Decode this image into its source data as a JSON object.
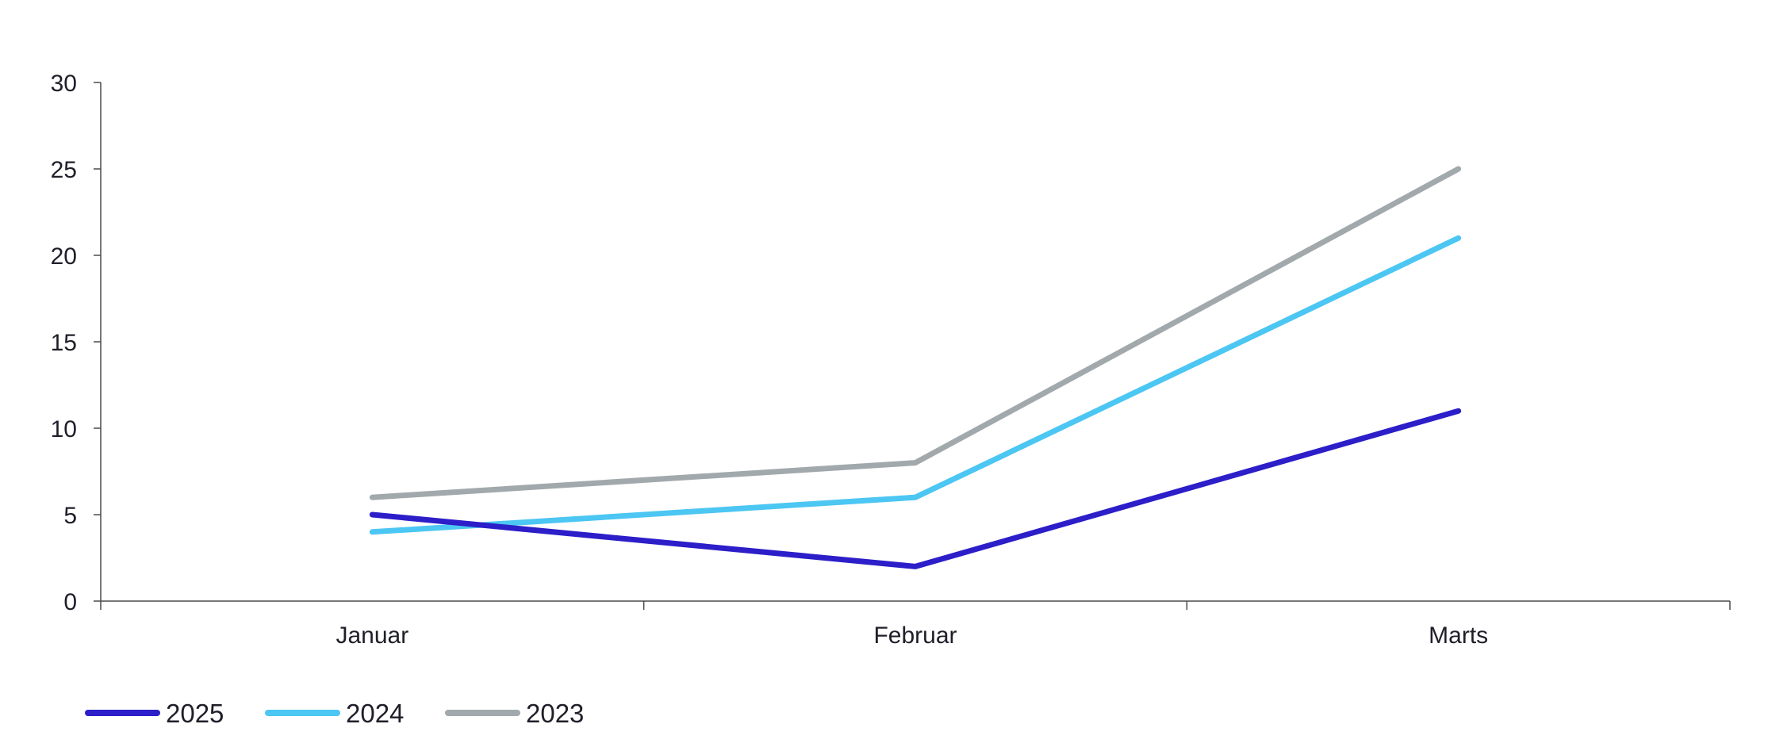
{
  "chart_data": {
    "type": "line",
    "title": "",
    "xlabel": "",
    "ylabel": "",
    "categories": [
      "Januar",
      "Februar",
      "Marts"
    ],
    "ylim": [
      0,
      30
    ],
    "yticks": [
      0,
      5,
      10,
      15,
      20,
      25,
      30
    ],
    "grid": false,
    "legend_position": "bottom-left",
    "series": [
      {
        "name": "2025",
        "color": "#2c1ec8",
        "values": [
          5,
          2,
          11
        ]
      },
      {
        "name": "2024",
        "color": "#4cc6f2",
        "values": [
          4,
          6,
          21
        ]
      },
      {
        "name": "2023",
        "color": "#a2a9ac",
        "values": [
          6,
          8,
          25
        ]
      }
    ]
  }
}
